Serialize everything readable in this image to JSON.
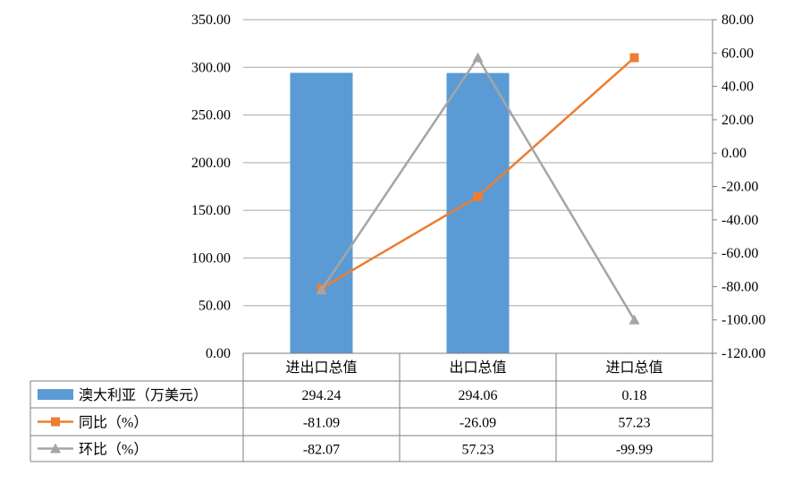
{
  "chart_data": {
    "type": "bar",
    "categories": [
      "进出口总值",
      "出口总值",
      "进口总值"
    ],
    "series": [
      {
        "name": "澳大利亚（万美元）",
        "kind": "bar",
        "axis": "left",
        "values": [
          294.24,
          294.06,
          0.18
        ],
        "display": [
          "294.24",
          "294.06",
          "0.18"
        ],
        "color": "#5B9BD5"
      },
      {
        "name": "同比（%）",
        "kind": "line",
        "axis": "right",
        "marker": "square",
        "values": [
          -81.09,
          -26.09,
          57.23
        ],
        "display": [
          "-81.09",
          "-26.09",
          "57.23"
        ],
        "color": "#ED7D31"
      },
      {
        "name": "环比（%）",
        "kind": "line",
        "axis": "right",
        "marker": "triangle",
        "values": [
          -82.07,
          57.23,
          -99.99
        ],
        "display": [
          "-82.07",
          "57.23",
          "-99.99"
        ],
        "color": "#A5A5A5"
      }
    ],
    "y_left": {
      "min": 0,
      "max": 350,
      "ticks": [
        "0.00",
        "50.00",
        "100.00",
        "150.00",
        "200.00",
        "250.00",
        "300.00",
        "350.00"
      ]
    },
    "y_right": {
      "min": -120,
      "max": 80,
      "ticks": [
        "-120.00",
        "-100.00",
        "-80.00",
        "-60.00",
        "-40.00",
        "-20.00",
        "0.00",
        "20.00",
        "40.00",
        "60.00",
        "80.00"
      ]
    },
    "grid": true,
    "legend": "data-table-below",
    "title": "",
    "xlabel": "",
    "ylabel": ""
  }
}
